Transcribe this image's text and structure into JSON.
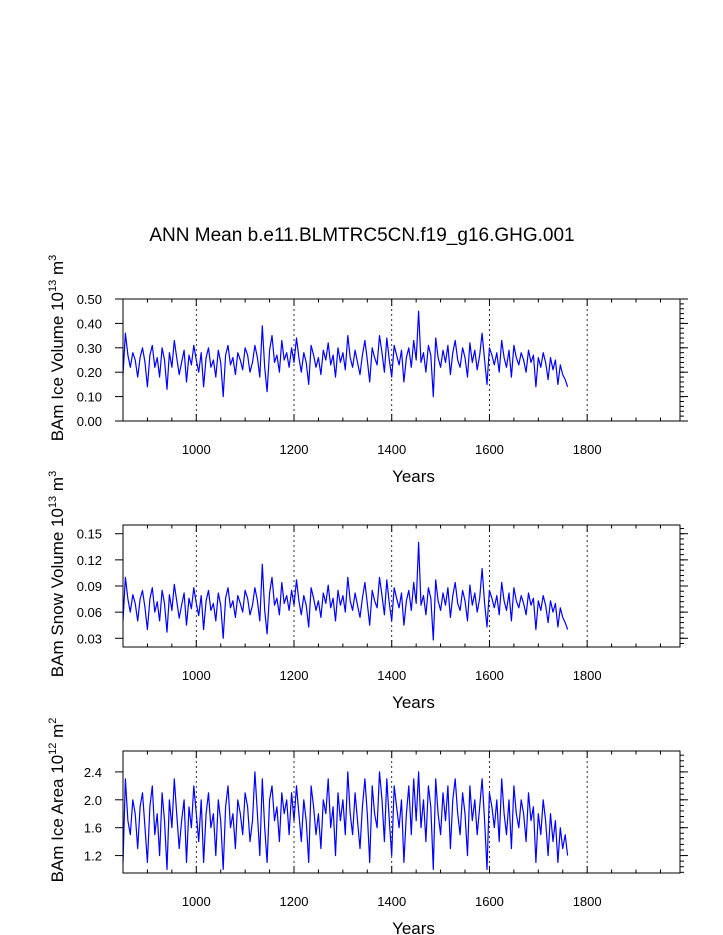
{
  "title": "ANN Mean b.e11.BLMTRC5CN.f19_g16.GHG.001",
  "series_color": "#0000ff",
  "chart_data": [
    {
      "type": "line",
      "ylabel": "BAm Ice Volume 10^13 m^3",
      "ylabel_parts": {
        "pre": "BAm Ice Volume 10",
        "sup1": "13",
        "mid": " m",
        "sup2": "3"
      },
      "xlabel": "Years",
      "xlim": [
        850,
        1990
      ],
      "ylim": [
        0.0,
        0.5
      ],
      "xticks": [
        1000,
        1200,
        1400,
        1600,
        1800
      ],
      "xtick_labels": [
        "1000",
        "1200",
        "1400",
        "1600",
        "1800"
      ],
      "yticks": [
        0.0,
        0.1,
        0.2,
        0.3,
        0.4,
        0.5
      ],
      "ytick_labels": [
        "0.00",
        "0.10",
        "0.20",
        "0.30",
        "0.40",
        "0.50"
      ],
      "grid": "dashed vertical lines at major x ticks",
      "series": [
        {
          "x_start": 850,
          "x_step": 5,
          "values": [
            0.19,
            0.36,
            0.27,
            0.22,
            0.28,
            0.25,
            0.18,
            0.26,
            0.3,
            0.24,
            0.14,
            0.27,
            0.31,
            0.22,
            0.26,
            0.18,
            0.3,
            0.25,
            0.13,
            0.28,
            0.22,
            0.33,
            0.26,
            0.19,
            0.24,
            0.29,
            0.16,
            0.27,
            0.23,
            0.31,
            0.25,
            0.2,
            0.28,
            0.14,
            0.26,
            0.3,
            0.22,
            0.25,
            0.18,
            0.29,
            0.24,
            0.1,
            0.27,
            0.31,
            0.23,
            0.26,
            0.19,
            0.28,
            0.25,
            0.21,
            0.3,
            0.27,
            0.2,
            0.24,
            0.31,
            0.26,
            0.18,
            0.39,
            0.22,
            0.12,
            0.29,
            0.35,
            0.24,
            0.27,
            0.2,
            0.33,
            0.25,
            0.28,
            0.22,
            0.3,
            0.24,
            0.34,
            0.26,
            0.2,
            0.28,
            0.24,
            0.15,
            0.31,
            0.27,
            0.22,
            0.26,
            0.19,
            0.29,
            0.25,
            0.32,
            0.23,
            0.27,
            0.18,
            0.3,
            0.24,
            0.28,
            0.21,
            0.35,
            0.26,
            0.22,
            0.29,
            0.24,
            0.19,
            0.27,
            0.33,
            0.25,
            0.16,
            0.3,
            0.26,
            0.23,
            0.35,
            0.28,
            0.2,
            0.34,
            0.25,
            0.18,
            0.31,
            0.27,
            0.23,
            0.29,
            0.16,
            0.26,
            0.3,
            0.22,
            0.33,
            0.25,
            0.45,
            0.24,
            0.28,
            0.2,
            0.31,
            0.27,
            0.1,
            0.34,
            0.26,
            0.22,
            0.29,
            0.24,
            0.31,
            0.19,
            0.28,
            0.33,
            0.25,
            0.22,
            0.3,
            0.26,
            0.18,
            0.32,
            0.24,
            0.29,
            0.21,
            0.27,
            0.36,
            0.25,
            0.15,
            0.3,
            0.27,
            0.23,
            0.28,
            0.2,
            0.33,
            0.26,
            0.22,
            0.29,
            0.18,
            0.31,
            0.26,
            0.23,
            0.28,
            0.25,
            0.2,
            0.29,
            0.24,
            0.27,
            0.14,
            0.26,
            0.22,
            0.28,
            0.24,
            0.17,
            0.26,
            0.21,
            0.25,
            0.15,
            0.23,
            0.19,
            0.17,
            0.14
          ]
        }
      ]
    },
    {
      "type": "line",
      "ylabel": "BAm Snow Volume 10^13 m^3",
      "ylabel_parts": {
        "pre": "BAm Snow Volume 10",
        "sup1": "13",
        "mid": " m",
        "sup2": "3"
      },
      "xlabel": "Years",
      "xlim": [
        850,
        1990
      ],
      "ylim": [
        0.02,
        0.16
      ],
      "xticks": [
        1000,
        1200,
        1400,
        1600,
        1800
      ],
      "xtick_labels": [
        "1000",
        "1200",
        "1400",
        "1600",
        "1800"
      ],
      "yticks": [
        0.03,
        0.06,
        0.09,
        0.12,
        0.15
      ],
      "ytick_labels": [
        "0.03",
        "0.06",
        "0.09",
        "0.12",
        "0.15"
      ],
      "grid": "dashed vertical lines at major x ticks",
      "series": [
        {
          "x_start": 850,
          "x_step": 5,
          "values": [
            0.05,
            0.1,
            0.075,
            0.06,
            0.08,
            0.07,
            0.05,
            0.075,
            0.085,
            0.065,
            0.04,
            0.075,
            0.088,
            0.06,
            0.072,
            0.05,
            0.085,
            0.07,
            0.037,
            0.08,
            0.062,
            0.092,
            0.073,
            0.053,
            0.068,
            0.082,
            0.045,
            0.076,
            0.064,
            0.088,
            0.07,
            0.056,
            0.079,
            0.04,
            0.073,
            0.085,
            0.062,
            0.07,
            0.05,
            0.082,
            0.068,
            0.03,
            0.076,
            0.088,
            0.065,
            0.073,
            0.054,
            0.079,
            0.07,
            0.06,
            0.085,
            0.076,
            0.057,
            0.068,
            0.088,
            0.073,
            0.05,
            0.115,
            0.062,
            0.035,
            0.082,
            0.1,
            0.068,
            0.076,
            0.057,
            0.094,
            0.07,
            0.079,
            0.062,
            0.085,
            0.068,
            0.097,
            0.073,
            0.057,
            0.079,
            0.068,
            0.043,
            0.088,
            0.076,
            0.062,
            0.073,
            0.054,
            0.082,
            0.07,
            0.091,
            0.065,
            0.076,
            0.05,
            0.085,
            0.068,
            0.079,
            0.06,
            0.1,
            0.073,
            0.062,
            0.082,
            0.068,
            0.054,
            0.076,
            0.094,
            0.07,
            0.045,
            0.085,
            0.073,
            0.065,
            0.1,
            0.079,
            0.057,
            0.097,
            0.07,
            0.05,
            0.088,
            0.076,
            0.065,
            0.082,
            0.045,
            0.073,
            0.085,
            0.062,
            0.094,
            0.07,
            0.14,
            0.068,
            0.079,
            0.057,
            0.088,
            0.076,
            0.028,
            0.097,
            0.073,
            0.062,
            0.082,
            0.068,
            0.088,
            0.054,
            0.079,
            0.094,
            0.07,
            0.062,
            0.085,
            0.073,
            0.05,
            0.091,
            0.068,
            0.082,
            0.06,
            0.076,
            0.11,
            0.07,
            0.043,
            0.085,
            0.076,
            0.065,
            0.079,
            0.057,
            0.094,
            0.073,
            0.062,
            0.082,
            0.05,
            0.088,
            0.073,
            0.065,
            0.079,
            0.07,
            0.057,
            0.082,
            0.068,
            0.076,
            0.04,
            0.073,
            0.062,
            0.079,
            0.068,
            0.048,
            0.073,
            0.06,
            0.07,
            0.043,
            0.065,
            0.054,
            0.048,
            0.04
          ]
        }
      ]
    },
    {
      "type": "line",
      "ylabel": "BAm Ice Area 10^12 m^2",
      "ylabel_parts": {
        "pre": "BAm Ice Area 10",
        "sup1": "12",
        "mid": " m",
        "sup2": "2"
      },
      "xlabel": "Years",
      "xlim": [
        850,
        1990
      ],
      "ylim": [
        0.95,
        2.7
      ],
      "xticks": [
        1000,
        1200,
        1400,
        1600,
        1800
      ],
      "xtick_labels": [
        "1000",
        "1200",
        "1400",
        "1600",
        "1800"
      ],
      "yticks": [
        1.2,
        1.6,
        2.0,
        2.4
      ],
      "ytick_labels": [
        "1.2",
        "1.6",
        "2.0",
        "2.4"
      ],
      "grid": "dashed vertical lines at major x ticks",
      "series": [
        {
          "x_start": 850,
          "x_step": 5,
          "values": [
            1.1,
            2.3,
            1.7,
            1.5,
            2.0,
            1.8,
            1.3,
            1.9,
            2.1,
            1.6,
            1.1,
            1.9,
            2.2,
            1.5,
            1.8,
            1.2,
            2.1,
            1.7,
            1.0,
            2.0,
            1.6,
            2.3,
            1.8,
            1.3,
            1.7,
            2.0,
            1.1,
            1.9,
            1.6,
            2.2,
            1.8,
            1.4,
            2.0,
            1.1,
            1.8,
            2.1,
            1.6,
            1.8,
            1.2,
            2.0,
            1.7,
            1.0,
            1.9,
            2.2,
            1.6,
            1.8,
            1.3,
            2.0,
            1.8,
            1.5,
            2.1,
            1.9,
            1.4,
            1.7,
            2.4,
            1.8,
            1.2,
            2.3,
            1.6,
            1.1,
            2.0,
            2.2,
            1.7,
            1.9,
            1.4,
            2.1,
            1.8,
            2.0,
            1.5,
            2.1,
            1.7,
            2.2,
            1.8,
            1.4,
            2.0,
            1.7,
            1.1,
            2.2,
            1.9,
            1.5,
            1.8,
            1.3,
            2.0,
            1.8,
            2.3,
            1.6,
            1.9,
            1.2,
            2.1,
            1.7,
            2.0,
            1.5,
            2.4,
            1.8,
            1.5,
            2.1,
            1.7,
            1.3,
            1.9,
            2.3,
            1.8,
            1.1,
            2.2,
            1.8,
            1.6,
            2.4,
            2.0,
            1.4,
            2.3,
            1.7,
            1.2,
            2.2,
            1.9,
            1.6,
            2.0,
            1.1,
            1.8,
            2.2,
            1.5,
            2.3,
            1.7,
            2.4,
            1.6,
            2.0,
            1.4,
            2.2,
            1.9,
            1.0,
            2.3,
            1.8,
            1.5,
            2.1,
            1.7,
            2.2,
            1.3,
            2.0,
            2.3,
            1.8,
            1.5,
            2.1,
            1.8,
            1.2,
            2.2,
            1.7,
            2.0,
            1.5,
            1.9,
            2.3,
            1.7,
            1.0,
            2.1,
            1.9,
            1.6,
            2.0,
            1.4,
            2.3,
            1.8,
            1.5,
            2.0,
            1.3,
            2.2,
            1.8,
            1.6,
            2.0,
            1.8,
            1.4,
            2.1,
            1.7,
            1.9,
            1.1,
            1.8,
            1.5,
            2.0,
            1.7,
            1.2,
            1.8,
            1.4,
            1.7,
            1.1,
            1.6,
            1.3,
            1.5,
            1.2
          ]
        }
      ]
    }
  ]
}
